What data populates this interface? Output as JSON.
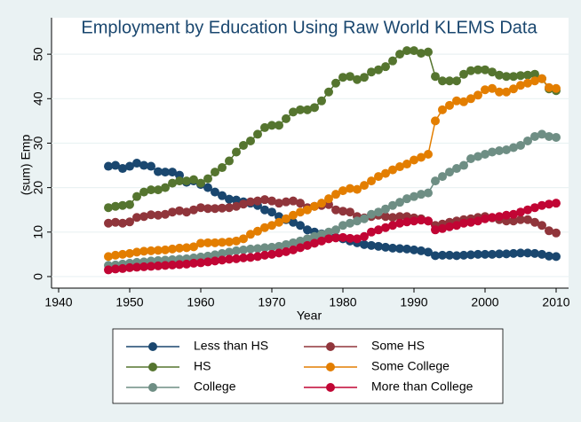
{
  "chart_data": {
    "type": "line",
    "title": "Employment by Education Using Raw World KLEMS Data",
    "x_label": "Year",
    "y_label": "(sum) Emp",
    "x": [
      1947,
      1948,
      1949,
      1950,
      1951,
      1952,
      1953,
      1954,
      1955,
      1956,
      1957,
      1958,
      1959,
      1960,
      1961,
      1962,
      1963,
      1964,
      1965,
      1966,
      1967,
      1968,
      1969,
      1970,
      1971,
      1972,
      1973,
      1974,
      1975,
      1976,
      1977,
      1978,
      1979,
      1980,
      1981,
      1982,
      1983,
      1984,
      1985,
      1986,
      1987,
      1988,
      1989,
      1990,
      1991,
      1992,
      1993,
      1994,
      1995,
      1996,
      1997,
      1998,
      1999,
      2000,
      2001,
      2002,
      2003,
      2004,
      2005,
      2006,
      2007,
      2008,
      2009,
      2010
    ],
    "series": [
      {
        "name": "Less than HS",
        "color": "#1a476f",
        "values": [
          24.8,
          25,
          24.3,
          24.8,
          25.5,
          25,
          24.8,
          23.6,
          23.5,
          23.5,
          22.8,
          21.2,
          21.5,
          20.7,
          20,
          19,
          18.2,
          17.4,
          17.2,
          16.8,
          16.5,
          16,
          15,
          14.5,
          13.5,
          12.8,
          12.2,
          11.5,
          10.5,
          10,
          9.6,
          9.3,
          8.8,
          8.5,
          8,
          7.6,
          7.2,
          7,
          6.8,
          6.6,
          6.4,
          6.3,
          6.2,
          6,
          5.8,
          5.5,
          4.7,
          4.8,
          4.8,
          4.7,
          4.8,
          4.9,
          5,
          5,
          5,
          5.1,
          5.1,
          5.2,
          5.3,
          5.3,
          5.2,
          5,
          4.6,
          4.5
        ]
      },
      {
        "name": "Some HS",
        "color": "#90353b",
        "values": [
          12,
          12.2,
          12,
          12.3,
          13.3,
          13.5,
          13.9,
          13.8,
          14,
          14.5,
          14.8,
          14.5,
          15,
          15.5,
          15.3,
          15.3,
          15.4,
          15.5,
          15.8,
          16.3,
          16.8,
          17,
          17.3,
          17,
          16.5,
          16.8,
          17,
          16.5,
          15.5,
          15.8,
          16,
          16.2,
          15,
          14.7,
          14.5,
          13.5,
          13.2,
          13.5,
          13.8,
          13.5,
          13.3,
          13.5,
          13.5,
          13.2,
          13,
          12.5,
          11.5,
          11.8,
          12.2,
          12.5,
          12.8,
          13,
          13.3,
          13.5,
          13.2,
          12.8,
          12.5,
          12.5,
          12.8,
          12.8,
          12.2,
          11.5,
          10.3,
          9.8
        ]
      },
      {
        "name": "HS",
        "color": "#55752f",
        "values": [
          15.5,
          15.8,
          16,
          16.2,
          18,
          19,
          19.5,
          19.5,
          20,
          21,
          21.5,
          21.5,
          21.8,
          21,
          22,
          23.5,
          24.5,
          26,
          28,
          29.5,
          30.5,
          32,
          33.5,
          34,
          34,
          35.5,
          37,
          37.5,
          37.5,
          38,
          39.5,
          41.5,
          43.5,
          44.8,
          45,
          44.3,
          44.8,
          46,
          46.5,
          47.2,
          48.5,
          50,
          50.8,
          50.8,
          50.2,
          50.5,
          45,
          44,
          44,
          44,
          45.5,
          46.3,
          46.5,
          46.5,
          46,
          45.3,
          45,
          45,
          45.2,
          45.3,
          45.5,
          44.5,
          42.2,
          41.8
        ]
      },
      {
        "name": "Some College",
        "color": "#e37e00",
        "values": [
          4.5,
          4.8,
          5,
          5.2,
          5.5,
          5.7,
          5.8,
          5.9,
          6,
          6.2,
          6.4,
          6.5,
          6.7,
          7.5,
          7.6,
          7.6,
          7.7,
          7.8,
          8,
          8.5,
          9.5,
          10.2,
          11,
          11.5,
          12.2,
          13,
          13.8,
          14.5,
          15,
          15.8,
          16.5,
          17.5,
          18.5,
          19.3,
          19.8,
          19.6,
          20.5,
          21.5,
          22.5,
          23.2,
          24,
          24.7,
          25.3,
          26.2,
          26.8,
          27.5,
          35,
          37.5,
          38.5,
          39.5,
          39.3,
          40,
          40.8,
          42,
          42.3,
          41.5,
          41.5,
          42.2,
          43,
          43.5,
          44,
          44.5,
          42.5,
          42.3
        ]
      },
      {
        "name": "College",
        "color": "#6e8e84",
        "values": [
          2.5,
          2.6,
          2.8,
          3,
          3.2,
          3.3,
          3.5,
          3.6,
          3.7,
          3.8,
          3.9,
          4,
          4.2,
          4.4,
          4.6,
          4.9,
          5.2,
          5.5,
          5.8,
          6,
          6.2,
          6.3,
          6.5,
          6.6,
          6.8,
          7.2,
          7.6,
          8,
          8.5,
          9,
          9.5,
          10,
          10.5,
          11.5,
          12,
          12.5,
          13,
          14,
          14.5,
          15.2,
          16,
          16.7,
          17.5,
          18,
          18.5,
          18.8,
          21.5,
          22.5,
          23.5,
          24.3,
          25,
          26.5,
          27,
          27.5,
          28,
          28.3,
          28.5,
          29,
          29.5,
          30.5,
          31.5,
          32,
          31.5,
          31.3
        ]
      },
      {
        "name": "More than College",
        "color": "#c10534",
        "values": [
          1.5,
          1.7,
          1.8,
          2,
          2.1,
          2.2,
          2.3,
          2.4,
          2.5,
          2.6,
          2.7,
          2.8,
          3,
          3.1,
          3.3,
          3.5,
          3.7,
          3.9,
          4,
          4.2,
          4.3,
          4.5,
          4.8,
          5,
          5.3,
          5.6,
          6,
          6.5,
          7,
          7.5,
          8,
          8.5,
          8.7,
          8.8,
          8.6,
          8.5,
          9,
          10,
          10.5,
          11,
          11.5,
          12,
          12.3,
          12.5,
          12.7,
          12.5,
          10.5,
          10.8,
          11.2,
          11.5,
          12,
          12.2,
          12.5,
          13,
          13.3,
          13.5,
          13.8,
          14,
          14.5,
          15,
          15.5,
          16,
          16.3,
          16.5
        ]
      }
    ],
    "xlim": [
      1939,
      2011.75
    ],
    "xticks": [
      1940,
      1950,
      1960,
      1970,
      1980,
      1990,
      2000,
      2010
    ],
    "ylim": [
      -2.6,
      58.2
    ],
    "yticks": [
      0,
      10,
      20,
      30,
      40,
      50
    ],
    "grid": true,
    "legend": "bottom"
  }
}
